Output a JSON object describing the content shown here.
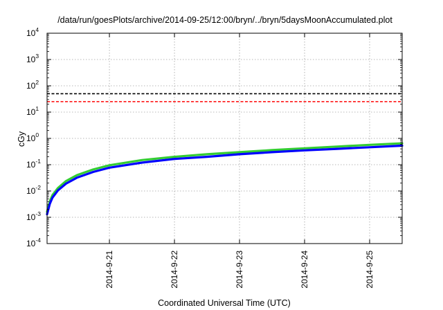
{
  "chart_data": {
    "type": "line",
    "title": "/data/run/goesPlots/archive/2014-09-25/12:00/bryn/../bryn/5daysMoonAccumulated.plot",
    "xlabel": "Coordinated Universal Time (UTC)",
    "ylabel": "cGy",
    "xscale": "time",
    "yscale": "log",
    "xlim": [
      "2014-09-20T01:00",
      "2014-09-25T12:00"
    ],
    "ylim": [
      0.0001,
      10000
    ],
    "grid": true,
    "x_ticks": [
      "2014-9-21",
      "2014-9-22",
      "2014-9-23",
      "2014-9-24",
      "2014-9-25"
    ],
    "y_ticks": [
      {
        "value": 0.0001,
        "base": "10",
        "exp": "-4"
      },
      {
        "value": 0.001,
        "base": "10",
        "exp": "-3"
      },
      {
        "value": 0.01,
        "base": "10",
        "exp": "-2"
      },
      {
        "value": 0.1,
        "base": "10",
        "exp": "-1"
      },
      {
        "value": 1,
        "base": "10",
        "exp": "0"
      },
      {
        "value": 10,
        "base": "10",
        "exp": "1"
      },
      {
        "value": 100,
        "base": "10",
        "exp": "2"
      },
      {
        "value": 1000,
        "base": "10",
        "exp": "3"
      },
      {
        "value": 10000,
        "base": "10",
        "exp": "4"
      }
    ],
    "reference_lines": [
      {
        "value": 50,
        "color": "#000000",
        "style": "dashed"
      },
      {
        "value": 25,
        "color": "#ff0000",
        "style": "dashed"
      }
    ],
    "series": [
      {
        "color": "#33cc33",
        "x": [
          "2014-09-20T01:00",
          "2014-09-20T02:00",
          "2014-09-20T03:00",
          "2014-09-20T05:00",
          "2014-09-20T08:00",
          "2014-09-20T12:00",
          "2014-09-20T18:00",
          "2014-09-21T00:00",
          "2014-09-21T12:00",
          "2014-09-22T00:00",
          "2014-09-22T12:00",
          "2014-09-23T00:00",
          "2014-09-23T12:00",
          "2014-09-24T00:00",
          "2014-09-24T12:00",
          "2014-09-25T00:00",
          "2014-09-25T12:00"
        ],
        "values": [
          0.0016,
          0.004,
          0.007,
          0.013,
          0.024,
          0.04,
          0.066,
          0.095,
          0.15,
          0.2,
          0.25,
          0.3,
          0.36,
          0.42,
          0.49,
          0.57,
          0.65
        ]
      },
      {
        "color": "#0000ff",
        "x": [
          "2014-09-20T01:00",
          "2014-09-20T02:00",
          "2014-09-20T03:00",
          "2014-09-20T05:00",
          "2014-09-20T08:00",
          "2014-09-20T12:00",
          "2014-09-20T18:00",
          "2014-09-21T00:00",
          "2014-09-21T12:00",
          "2014-09-22T00:00",
          "2014-09-22T12:00",
          "2014-09-23T00:00",
          "2014-09-23T12:00",
          "2014-09-24T00:00",
          "2014-09-24T12:00",
          "2014-09-25T00:00",
          "2014-09-25T12:00"
        ],
        "values": [
          0.0013,
          0.0032,
          0.0056,
          0.0105,
          0.019,
          0.032,
          0.053,
          0.077,
          0.12,
          0.165,
          0.2,
          0.25,
          0.3,
          0.35,
          0.4,
          0.46,
          0.53
        ]
      }
    ]
  }
}
